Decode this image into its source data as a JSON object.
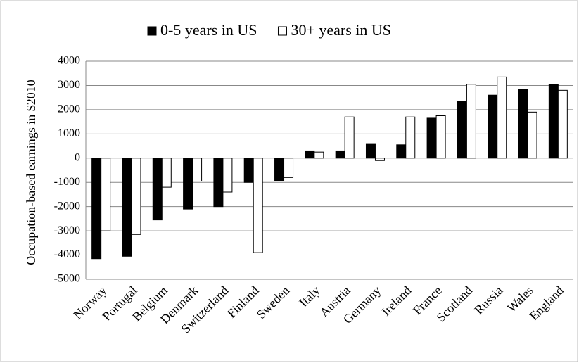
{
  "chart_data": {
    "type": "bar",
    "y_label": "Occupation-based  earnings  in $2010",
    "categories": [
      "Norway",
      "Portugal",
      "Belgium",
      "Denmark",
      "Switzerland",
      "Finland",
      "Sweden",
      "Italy",
      "Austria",
      "Germany",
      "Ireland",
      "France",
      "Scotland",
      "Russia",
      "Wales",
      "England"
    ],
    "series": [
      {
        "name": "0-5 years in US",
        "color": "#000000",
        "values": [
          -4150,
          -4050,
          -2550,
          -2100,
          -2000,
          -1000,
          -950,
          300,
          300,
          600,
          550,
          1650,
          2350,
          2600,
          2850,
          3050
        ]
      },
      {
        "name": "30+ years in US",
        "color": "#ffffff",
        "values": [
          -3000,
          -3150,
          -1200,
          -950,
          -1400,
          -3900,
          -800,
          250,
          1700,
          -100,
          1700,
          1750,
          3050,
          3350,
          1900,
          2800
        ]
      }
    ],
    "ylim": [
      -5000,
      4000
    ],
    "yticks": [
      -5000,
      -4000,
      -3000,
      -2000,
      -1000,
      0,
      1000,
      2000,
      3000,
      4000
    ],
    "grid": true,
    "legend": "top"
  }
}
